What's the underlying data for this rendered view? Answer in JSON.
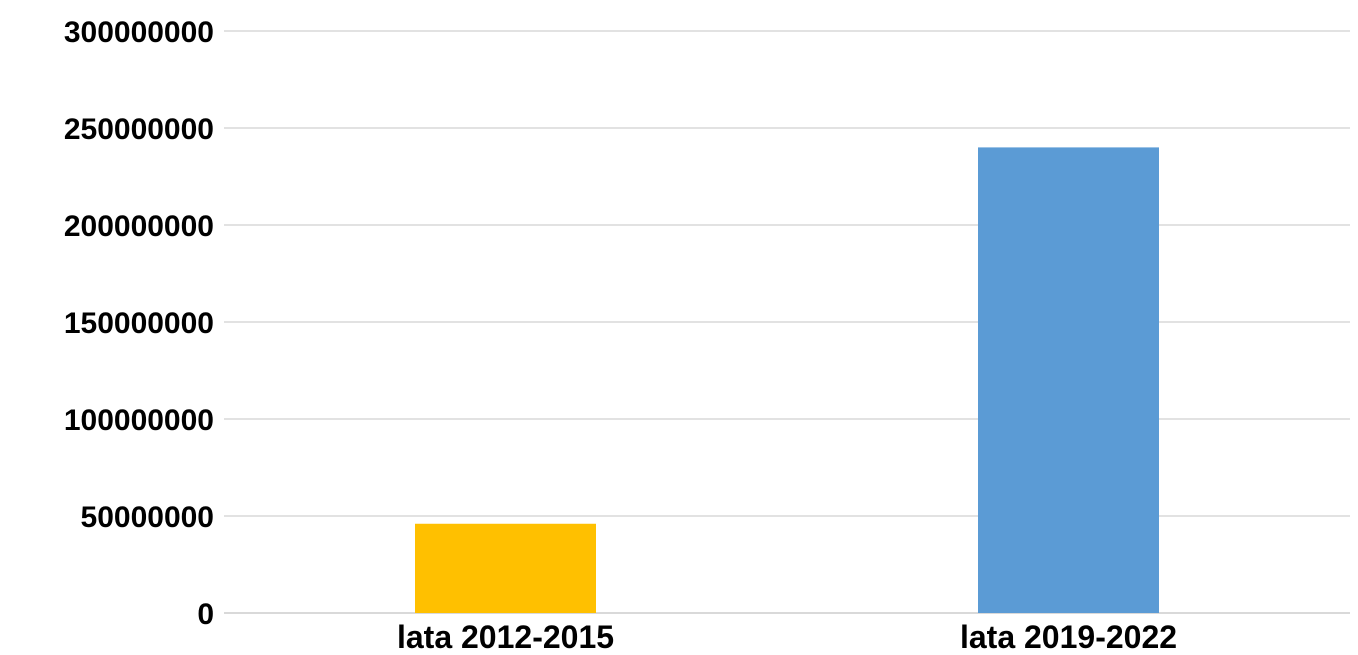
{
  "chart_data": {
    "type": "bar",
    "categories": [
      "lata 2012-2015",
      "lata 2019-2022"
    ],
    "values": [
      46000000,
      240000000
    ],
    "bar_colors": [
      "#FFC000",
      "#5B9BD5"
    ],
    "yticks": [
      "0",
      "50000000",
      "100000000",
      "150000000",
      "200000000",
      "250000000",
      "300000000"
    ],
    "ylim": [
      0,
      300000000
    ],
    "grid": true,
    "legend": "none"
  }
}
